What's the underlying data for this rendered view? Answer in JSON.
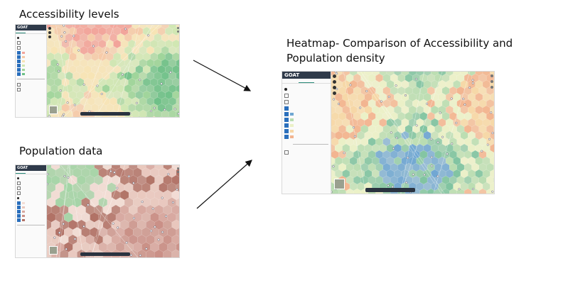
{
  "titles": {
    "accessibility": "Accessibility levels",
    "population": "Population data",
    "heatmap_line1": "Heatmap- Comparison of Accessibility and",
    "heatmap_line2": "Population density"
  },
  "app": {
    "brand": "GOAT"
  },
  "colors": {
    "accessibility_map": [
      "#f2a49a",
      "#f5c9a7",
      "#f7e3b4",
      "#cfe6b2",
      "#9fd49a",
      "#6cbf86"
    ],
    "population_map": [
      "#c98f86",
      "#d7a79e",
      "#e9c7bd",
      "#b07064",
      "#f3ddd5",
      "#9fd4a3"
    ],
    "heatmap_map": [
      "#f6d7a6",
      "#f2b48f",
      "#eaf0c6",
      "#b8dcb0",
      "#7fc3a0",
      "#6fa6d2"
    ],
    "arrow": "#111111",
    "panel_brand": "#2f3a4a"
  }
}
